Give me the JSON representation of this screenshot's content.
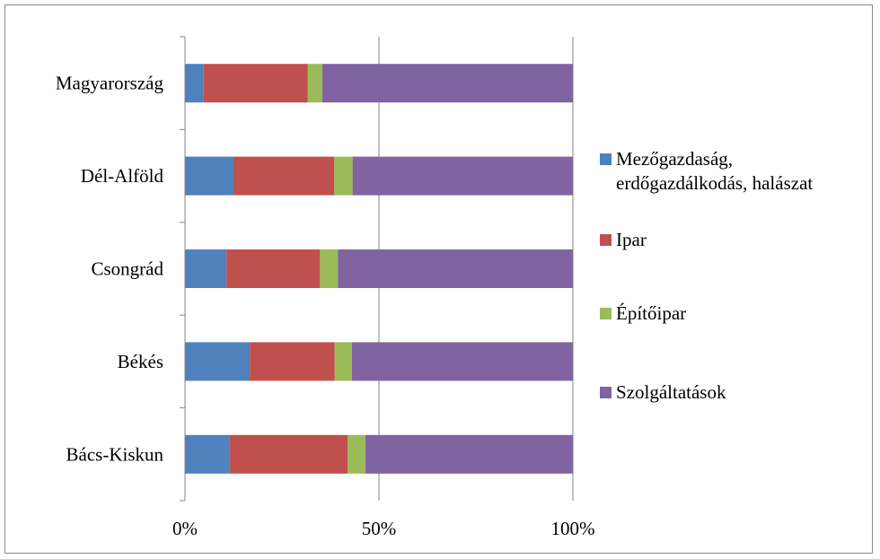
{
  "chart_data": {
    "type": "bar",
    "orientation": "horizontal",
    "stacked": "percent",
    "categories": [
      "Magyarország",
      "Dél-Alföld",
      "Csongrád",
      "Békés",
      "Bács-Kiskun"
    ],
    "series": [
      {
        "name": "Mezőgazdaság, erdőgazdálkodás, halászat",
        "color": "#4f81bd",
        "values": [
          4.8,
          12.5,
          10.7,
          16.7,
          11.5
        ]
      },
      {
        "name": "Ipar",
        "color": "#c0504d",
        "values": [
          26.8,
          26.0,
          24.1,
          21.9,
          30.4
        ]
      },
      {
        "name": "Építőipar",
        "color": "#9bbb59",
        "values": [
          3.8,
          4.7,
          4.6,
          4.4,
          4.6
        ]
      },
      {
        "name": "Szolgáltatások",
        "color": "#8064a2",
        "values": [
          64.6,
          56.8,
          60.6,
          57.0,
          53.5
        ]
      }
    ],
    "x_ticks": [
      "0%",
      "50%",
      "100%"
    ],
    "xlim": [
      0,
      100
    ],
    "grid": "vertical major gridlines",
    "legend_position": "right",
    "title": "",
    "xlabel": "",
    "ylabel": ""
  }
}
